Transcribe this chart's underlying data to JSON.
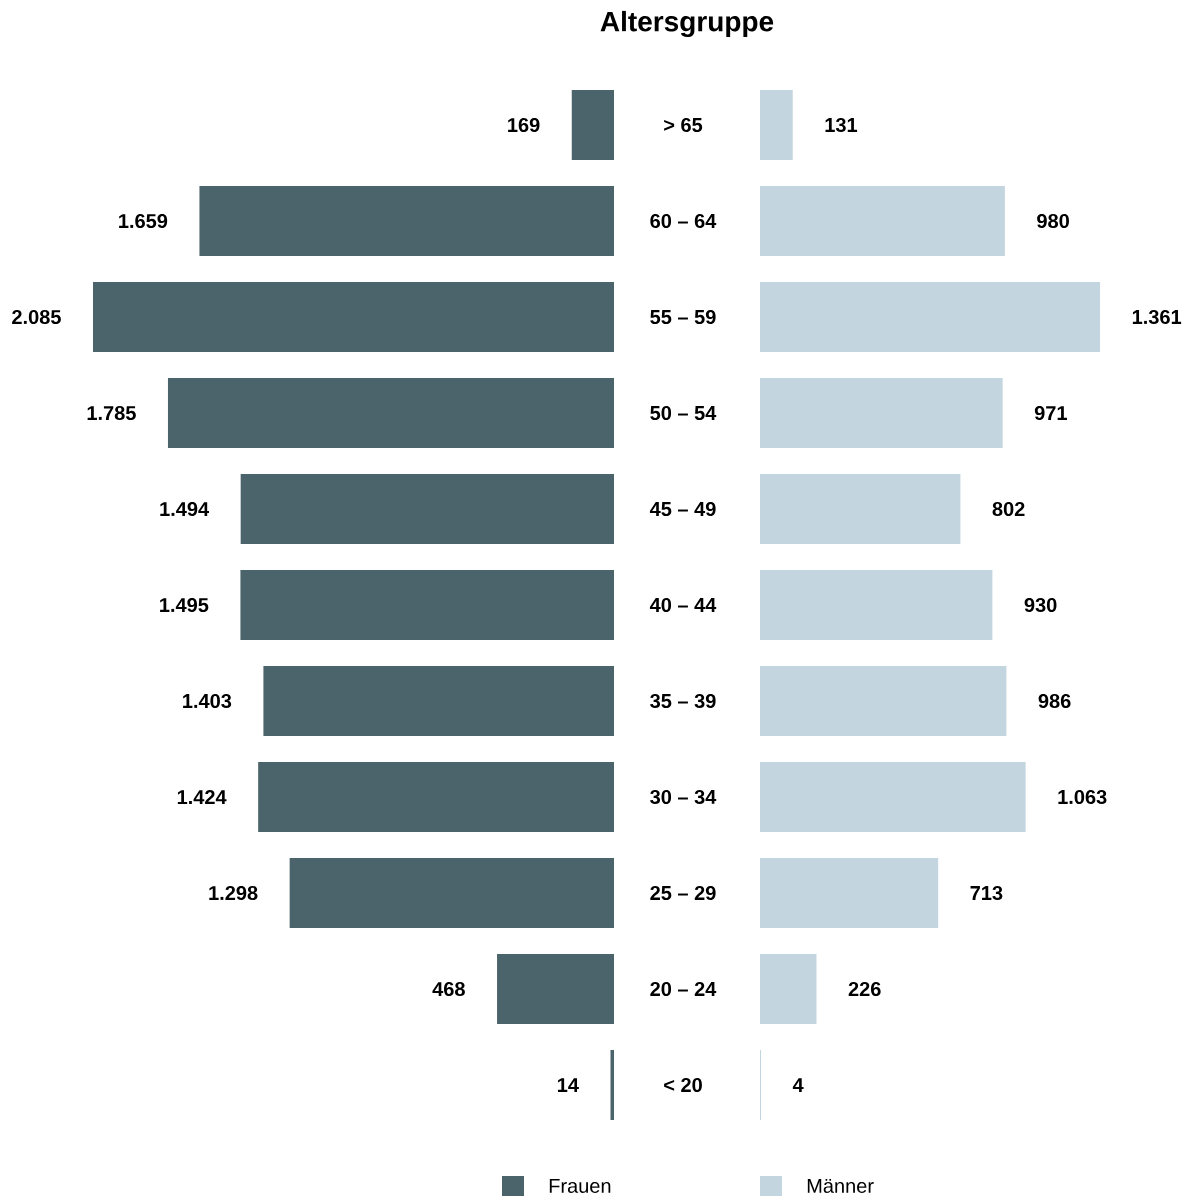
{
  "chart_data": [
    {
      "type": "bar",
      "orientation": "horizontal",
      "title": "Altersgruppe",
      "legend": "bottom",
      "categories": [
        "> 65",
        "60 – 64",
        "55 – 59",
        "50 – 54",
        "45 – 49",
        "40 – 44",
        "35 – 39",
        "30 – 34",
        "25 – 29",
        "20 – 24",
        "< 20"
      ],
      "series": [
        {
          "name": "Frauen",
          "color": "#4b636a",
          "values": [
            169,
            1659,
            2085,
            1785,
            1494,
            1495,
            1403,
            1424,
            1298,
            468,
            14
          ],
          "value_labels": [
            "169",
            "1.659",
            "2.085",
            "1.785",
            "1.494",
            "1.495",
            "1.403",
            "1.424",
            "1.298",
            "468",
            "14"
          ]
        }
      ]
    },
    {
      "type": "bar",
      "orientation": "horizontal",
      "legend": "bottom",
      "categories": [
        null,
        null,
        null,
        null,
        null,
        null,
        null,
        null,
        null,
        null,
        null
      ],
      "series": [
        {
          "name": "Männer",
          "color": "#c3d6df",
          "values": [
            131,
            980,
            1361,
            971,
            802,
            930,
            986,
            1063,
            713,
            226,
            4
          ],
          "value_labels": [
            "131",
            "980",
            "1.361",
            "971",
            "802",
            "930",
            "986",
            "1.063",
            "713",
            "226",
            "4"
          ]
        }
      ]
    }
  ]
}
